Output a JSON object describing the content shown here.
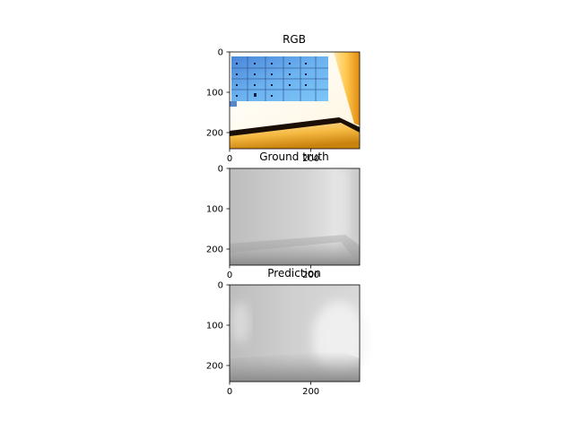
{
  "figure": {
    "panels": [
      {
        "id": "rgb",
        "title": "RGB",
        "kind": "rgb-image"
      },
      {
        "id": "gt",
        "title": "Ground truth",
        "kind": "depth-map"
      },
      {
        "id": "pred",
        "title": "Prediction",
        "kind": "depth-map"
      }
    ]
  },
  "chart_data": [
    {
      "type": "heatmap",
      "title": "RGB",
      "xlim": [
        0,
        320
      ],
      "ylim": [
        240,
        0
      ],
      "xticks": [
        0,
        200
      ],
      "yticks": [
        0,
        100,
        200
      ],
      "xtick_labels": [
        "0",
        "200"
      ],
      "ytick_labels": [
        "0",
        "100",
        "200"
      ],
      "content": "photo of a room corner: blue locker panel on wall, bright yellow lit wall and floor"
    },
    {
      "type": "heatmap",
      "title": "Ground truth",
      "xlim": [
        0,
        320
      ],
      "ylim": [
        240,
        0
      ],
      "xticks": [
        0,
        200
      ],
      "yticks": [
        0,
        100,
        200
      ],
      "xtick_labels": [
        "0",
        "200"
      ],
      "ytick_labels": [
        "0",
        "100",
        "200"
      ],
      "colormap": "gray"
    },
    {
      "type": "heatmap",
      "title": "Prediction",
      "xlim": [
        0,
        320
      ],
      "ylim": [
        240,
        0
      ],
      "xticks": [
        0,
        200
      ],
      "yticks": [
        0,
        100,
        200
      ],
      "xtick_labels": [
        "0",
        "200"
      ],
      "ytick_labels": [
        "0",
        "100",
        "200"
      ],
      "colormap": "gray"
    }
  ]
}
